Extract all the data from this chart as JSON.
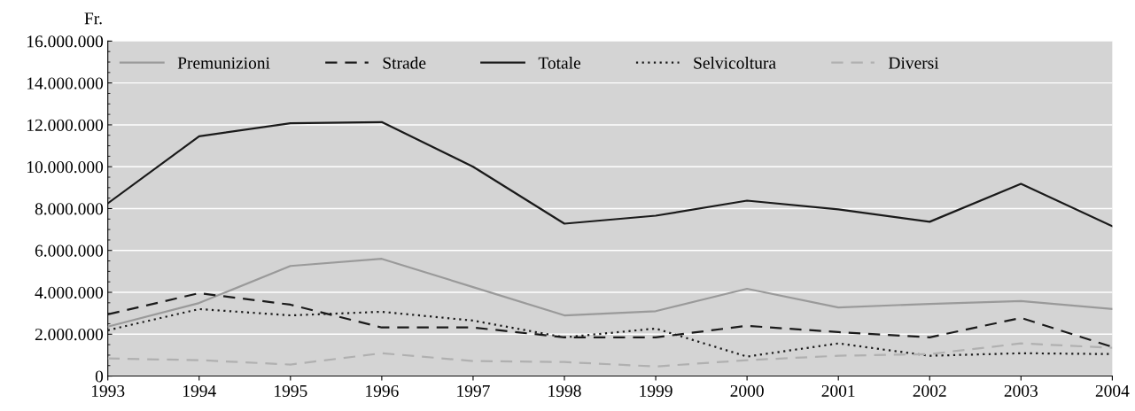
{
  "chart_data": {
    "type": "line",
    "ylabel": "Fr.",
    "x": [
      1993,
      1994,
      1995,
      1996,
      1997,
      1998,
      1999,
      2000,
      2001,
      2002,
      2003,
      2004
    ],
    "series": [
      {
        "name": "Premunizioni",
        "color": "#9a9a9a",
        "line_style": "solid",
        "values": [
          2360000,
          3490000,
          5260000,
          5600000,
          4250000,
          2900000,
          3100000,
          4170000,
          3280000,
          3450000,
          3580000,
          3200000
        ]
      },
      {
        "name": "Strade",
        "color": "#1a1a1a",
        "line_style": "dashed",
        "values": [
          2950000,
          3960000,
          3410000,
          2320000,
          2320000,
          1850000,
          1850000,
          2400000,
          2100000,
          1850000,
          2780000,
          1390000
        ]
      },
      {
        "name": "Totale",
        "color": "#1a1a1a",
        "line_style": "solid",
        "values": [
          8250000,
          11450000,
          12080000,
          12130000,
          10000000,
          7280000,
          7660000,
          8380000,
          7960000,
          7370000,
          9180000,
          7160000
        ]
      },
      {
        "name": "Selvicoltura",
        "color": "#1a1a1a",
        "line_style": "dotted",
        "values": [
          2190000,
          3200000,
          2900000,
          3070000,
          2650000,
          1850000,
          2270000,
          930000,
          1560000,
          970000,
          1090000,
          1050000
        ]
      },
      {
        "name": "Diversi",
        "color": "#b0b0b0",
        "line_style": "dashed",
        "values": [
          840000,
          760000,
          550000,
          1090000,
          720000,
          670000,
          460000,
          760000,
          970000,
          1050000,
          1560000,
          1350000
        ]
      }
    ],
    "xlim": [
      1993,
      2004
    ],
    "xticks": [
      1993,
      1994,
      1995,
      1996,
      1997,
      1998,
      1999,
      2000,
      2001,
      2002,
      2003,
      2004
    ],
    "ylim": [
      0,
      16000000
    ],
    "yticks": [
      {
        "value": 0,
        "label": "0"
      },
      {
        "value": 2000000,
        "label": "2.000.000"
      },
      {
        "value": 4000000,
        "label": "4.000.000"
      },
      {
        "value": 6000000,
        "label": "6.000.000"
      },
      {
        "value": 8000000,
        "label": "8.000.000"
      },
      {
        "value": 10000000,
        "label": "10.000.000"
      },
      {
        "value": 12000000,
        "label": "12.000.000"
      },
      {
        "value": 14000000,
        "label": "14.000.000"
      },
      {
        "value": 16000000,
        "label": "16.000.000"
      }
    ],
    "grid": "y",
    "legend": "top",
    "marker": "none"
  }
}
